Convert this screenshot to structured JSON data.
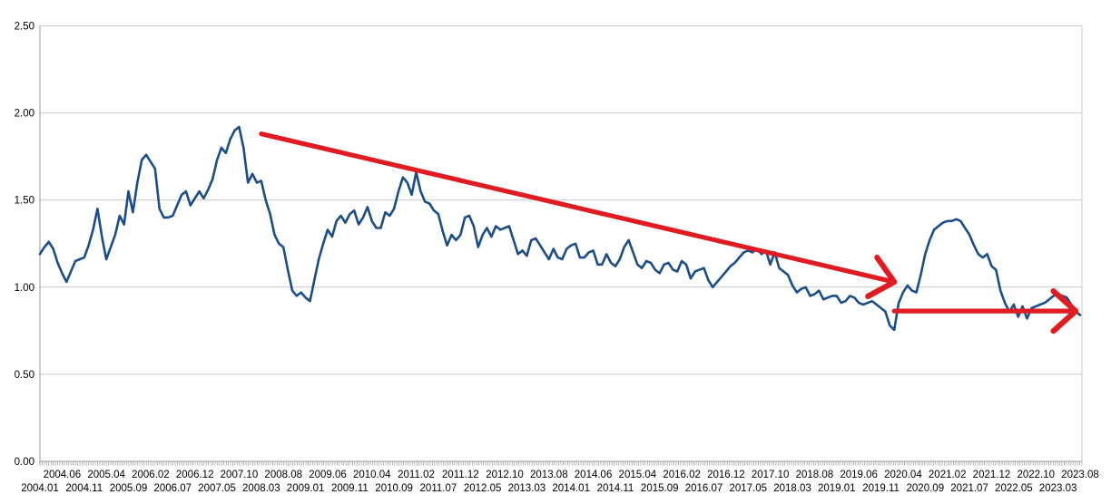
{
  "chart_data": {
    "type": "line",
    "title": "",
    "xlabel": "",
    "ylabel": "",
    "x_start": "2004.01",
    "x_end": "2023.08",
    "frequency": "monthly",
    "ylim": [
      0.0,
      2.5
    ],
    "y_tick_labels": [
      "0.00",
      "0.50",
      "1.00",
      "1.50",
      "2.00",
      "2.50"
    ],
    "x_tick_labels": [
      "2004.01",
      "2004.06",
      "2004.11",
      "2005.04",
      "2005.09",
      "2006.02",
      "2006.07",
      "2006.12",
      "2007.05",
      "2007.10",
      "2008.03",
      "2008.08",
      "2009.01",
      "2009.06",
      "2009.11",
      "2010.04",
      "2010.09",
      "2011.02",
      "2011.07",
      "2011.12",
      "2012.05",
      "2012.10",
      "2013.03",
      "2013.08",
      "2014.01",
      "2014.06",
      "2014.11",
      "2015.04",
      "2015.09",
      "2016.02",
      "2016.07",
      "2016.12",
      "2017.05",
      "2017.10",
      "2018.03",
      "2018.08",
      "2019.01",
      "2019.06",
      "2019.11",
      "2020.04",
      "2020.09",
      "2021.02",
      "2021.07",
      "2021.12",
      "2022.05",
      "2022.10",
      "2023.03",
      "2023.08"
    ],
    "x_tick_every_n_months": 5,
    "x_labels_staggered_two_rows": true,
    "grid": "horizontal",
    "legend": "none",
    "series": [
      {
        "name": "monthly-series",
        "color": "#1b4e89",
        "values": [
          1.19,
          1.23,
          1.26,
          1.22,
          1.14,
          1.08,
          1.03,
          1.09,
          1.15,
          1.16,
          1.17,
          1.24,
          1.33,
          1.45,
          1.29,
          1.16,
          1.23,
          1.3,
          1.41,
          1.36,
          1.55,
          1.43,
          1.6,
          1.73,
          1.76,
          1.72,
          1.68,
          1.45,
          1.4,
          1.4,
          1.41,
          1.47,
          1.53,
          1.55,
          1.47,
          1.51,
          1.55,
          1.51,
          1.56,
          1.62,
          1.73,
          1.8,
          1.77,
          1.85,
          1.9,
          1.92,
          1.8,
          1.6,
          1.65,
          1.6,
          1.61,
          1.5,
          1.42,
          1.3,
          1.25,
          1.23,
          1.1,
          0.98,
          0.95,
          0.97,
          0.94,
          0.92,
          1.04,
          1.16,
          1.25,
          1.33,
          1.29,
          1.38,
          1.41,
          1.37,
          1.42,
          1.44,
          1.36,
          1.4,
          1.46,
          1.38,
          1.34,
          1.34,
          1.43,
          1.41,
          1.45,
          1.55,
          1.63,
          1.6,
          1.53,
          1.66,
          1.55,
          1.49,
          1.48,
          1.44,
          1.42,
          1.32,
          1.24,
          1.3,
          1.27,
          1.3,
          1.4,
          1.41,
          1.35,
          1.23,
          1.3,
          1.34,
          1.29,
          1.35,
          1.33,
          1.34,
          1.35,
          1.27,
          1.19,
          1.21,
          1.18,
          1.27,
          1.28,
          1.24,
          1.2,
          1.16,
          1.22,
          1.17,
          1.16,
          1.22,
          1.24,
          1.25,
          1.17,
          1.17,
          1.2,
          1.21,
          1.13,
          1.13,
          1.19,
          1.14,
          1.12,
          1.16,
          1.23,
          1.27,
          1.2,
          1.13,
          1.11,
          1.15,
          1.14,
          1.1,
          1.08,
          1.13,
          1.14,
          1.1,
          1.09,
          1.15,
          1.13,
          1.05,
          1.09,
          1.1,
          1.11,
          1.04,
          1.0,
          1.03,
          1.06,
          1.09,
          1.12,
          1.14,
          1.17,
          1.2,
          1.21,
          1.2,
          1.22,
          1.19,
          1.21,
          1.13,
          1.2,
          1.11,
          1.09,
          1.07,
          1.01,
          0.97,
          0.99,
          1.0,
          0.95,
          0.96,
          0.98,
          0.93,
          0.94,
          0.95,
          0.95,
          0.91,
          0.92,
          0.95,
          0.94,
          0.91,
          0.9,
          0.91,
          0.92,
          0.9,
          0.88,
          0.86,
          0.78,
          0.755,
          0.91,
          0.97,
          1.01,
          0.98,
          0.97,
          1.07,
          1.19,
          1.27,
          1.33,
          1.35,
          1.37,
          1.38,
          1.38,
          1.39,
          1.38,
          1.34,
          1.3,
          1.24,
          1.19,
          1.17,
          1.19,
          1.12,
          1.1,
          0.98,
          0.91,
          0.86,
          0.9,
          0.83,
          0.89,
          0.82,
          0.88,
          0.89,
          0.9,
          0.91,
          0.93,
          0.95,
          0.96,
          0.95,
          0.94,
          0.9,
          0.86,
          0.84
        ]
      }
    ],
    "annotations": [
      {
        "type": "arrow",
        "name": "downtrend-arrow",
        "color": "#e01b22",
        "from": {
          "x": "2008.03",
          "value": 1.88
        },
        "to": {
          "x": "2020.02",
          "value": 1.03
        }
      },
      {
        "type": "arrow",
        "name": "sideways-arrow",
        "color": "#e01b22",
        "from": {
          "x": "2020.02",
          "value": 0.863
        },
        "to": {
          "x": "2023.07",
          "value": 0.863
        }
      }
    ],
    "colors": {
      "series_line": "#1b4e89",
      "annotation_red": "#e01b22",
      "gridline": "#c9c9c9",
      "axis": "#9a9a9a",
      "label_text": "#000000",
      "background": "#ffffff"
    }
  }
}
